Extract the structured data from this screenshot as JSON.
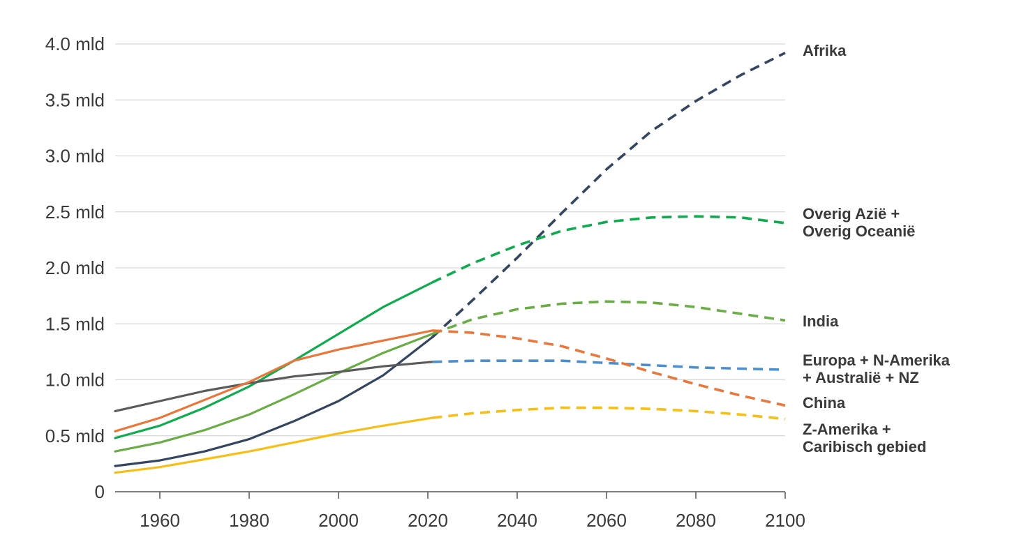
{
  "chart_data": {
    "type": "line",
    "title": "",
    "xlabel": "",
    "ylabel": "",
    "xlim": [
      1950,
      2100
    ],
    "ylim": [
      0,
      4.0
    ],
    "grid": true,
    "legend": "direct labels at right end of lines",
    "x_ticks": [
      1960,
      1980,
      2000,
      2020,
      2040,
      2060,
      2080,
      2100
    ],
    "y_ticks": [
      {
        "value": 0,
        "label": "0"
      },
      {
        "value": 0.5,
        "label": "0.5 mld"
      },
      {
        "value": 1.0,
        "label": "1.0 mld"
      },
      {
        "value": 1.5,
        "label": "1.5 mld"
      },
      {
        "value": 2.0,
        "label": "2.0 mld"
      },
      {
        "value": 2.5,
        "label": "2.5 mld"
      },
      {
        "value": 3.0,
        "label": "3.0 mld"
      },
      {
        "value": 3.5,
        "label": "3.5 mld"
      },
      {
        "value": 4.0,
        "label": "4.0 mld"
      }
    ],
    "projection_start": 2021,
    "series": [
      {
        "key": "afrika",
        "name": "Afrika",
        "label_lines": [
          "Afrika"
        ],
        "color": "#344560",
        "points": [
          [
            1950,
            0.23
          ],
          [
            1960,
            0.28
          ],
          [
            1970,
            0.36
          ],
          [
            1980,
            0.47
          ],
          [
            1990,
            0.63
          ],
          [
            2000,
            0.81
          ],
          [
            2010,
            1.04
          ],
          [
            2021,
            1.38
          ],
          [
            2030,
            1.71
          ],
          [
            2040,
            2.09
          ],
          [
            2050,
            2.49
          ],
          [
            2060,
            2.88
          ],
          [
            2070,
            3.22
          ],
          [
            2080,
            3.49
          ],
          [
            2090,
            3.72
          ],
          [
            2100,
            3.92
          ]
        ]
      },
      {
        "key": "overig-azie",
        "name": "Overig Azië + Overig Oceanië",
        "label_lines": [
          "Overig Azië +",
          "Overig Oceanië"
        ],
        "color": "#0fab4f",
        "points": [
          [
            1950,
            0.48
          ],
          [
            1960,
            0.59
          ],
          [
            1970,
            0.75
          ],
          [
            1980,
            0.94
          ],
          [
            1990,
            1.17
          ],
          [
            2000,
            1.41
          ],
          [
            2010,
            1.65
          ],
          [
            2021,
            1.87
          ],
          [
            2030,
            2.04
          ],
          [
            2040,
            2.2
          ],
          [
            2050,
            2.33
          ],
          [
            2060,
            2.41
          ],
          [
            2070,
            2.45
          ],
          [
            2080,
            2.46
          ],
          [
            2090,
            2.45
          ],
          [
            2100,
            2.4
          ]
        ]
      },
      {
        "key": "india",
        "name": "India",
        "label_lines": [
          "India"
        ],
        "color": "#6aac45",
        "points": [
          [
            1950,
            0.36
          ],
          [
            1960,
            0.44
          ],
          [
            1970,
            0.55
          ],
          [
            1980,
            0.69
          ],
          [
            1990,
            0.87
          ],
          [
            2000,
            1.06
          ],
          [
            2010,
            1.24
          ],
          [
            2021,
            1.41
          ],
          [
            2030,
            1.54
          ],
          [
            2040,
            1.63
          ],
          [
            2050,
            1.68
          ],
          [
            2060,
            1.7
          ],
          [
            2070,
            1.69
          ],
          [
            2080,
            1.65
          ],
          [
            2090,
            1.59
          ],
          [
            2100,
            1.53
          ]
        ]
      },
      {
        "key": "europa",
        "name": "Europa + N-Amerika + Australië + NZ",
        "label_lines": [
          "Europa + N-Amerika",
          "+ Australië + NZ"
        ],
        "color": "#5b5b5b",
        "proj_color": "#4a90d0",
        "points": [
          [
            1950,
            0.72
          ],
          [
            1960,
            0.81
          ],
          [
            1970,
            0.9
          ],
          [
            1980,
            0.97
          ],
          [
            1990,
            1.03
          ],
          [
            2000,
            1.07
          ],
          [
            2010,
            1.12
          ],
          [
            2021,
            1.16
          ],
          [
            2030,
            1.17
          ],
          [
            2040,
            1.17
          ],
          [
            2050,
            1.17
          ],
          [
            2060,
            1.15
          ],
          [
            2070,
            1.13
          ],
          [
            2080,
            1.11
          ],
          [
            2090,
            1.1
          ],
          [
            2100,
            1.09
          ]
        ]
      },
      {
        "key": "china",
        "name": "China",
        "label_lines": [
          "China"
        ],
        "color": "#e9773c",
        "points": [
          [
            1950,
            0.54
          ],
          [
            1960,
            0.66
          ],
          [
            1970,
            0.82
          ],
          [
            1980,
            0.98
          ],
          [
            1990,
            1.17
          ],
          [
            2000,
            1.27
          ],
          [
            2010,
            1.35
          ],
          [
            2021,
            1.44
          ],
          [
            2030,
            1.42
          ],
          [
            2040,
            1.37
          ],
          [
            2050,
            1.3
          ],
          [
            2060,
            1.19
          ],
          [
            2070,
            1.07
          ],
          [
            2080,
            0.96
          ],
          [
            2090,
            0.86
          ],
          [
            2100,
            0.77
          ]
        ]
      },
      {
        "key": "z-amerika",
        "name": "Z-Amerika + Caribisch gebied",
        "label_lines": [
          "Z-Amerika +",
          "Caribisch gebied"
        ],
        "color": "#f7bf16",
        "points": [
          [
            1950,
            0.17
          ],
          [
            1960,
            0.22
          ],
          [
            1970,
            0.29
          ],
          [
            1980,
            0.36
          ],
          [
            1990,
            0.44
          ],
          [
            2000,
            0.52
          ],
          [
            2010,
            0.59
          ],
          [
            2021,
            0.66
          ],
          [
            2030,
            0.7
          ],
          [
            2040,
            0.73
          ],
          [
            2050,
            0.75
          ],
          [
            2060,
            0.75
          ],
          [
            2070,
            0.74
          ],
          [
            2080,
            0.72
          ],
          [
            2090,
            0.69
          ],
          [
            2100,
            0.65
          ]
        ]
      }
    ]
  }
}
